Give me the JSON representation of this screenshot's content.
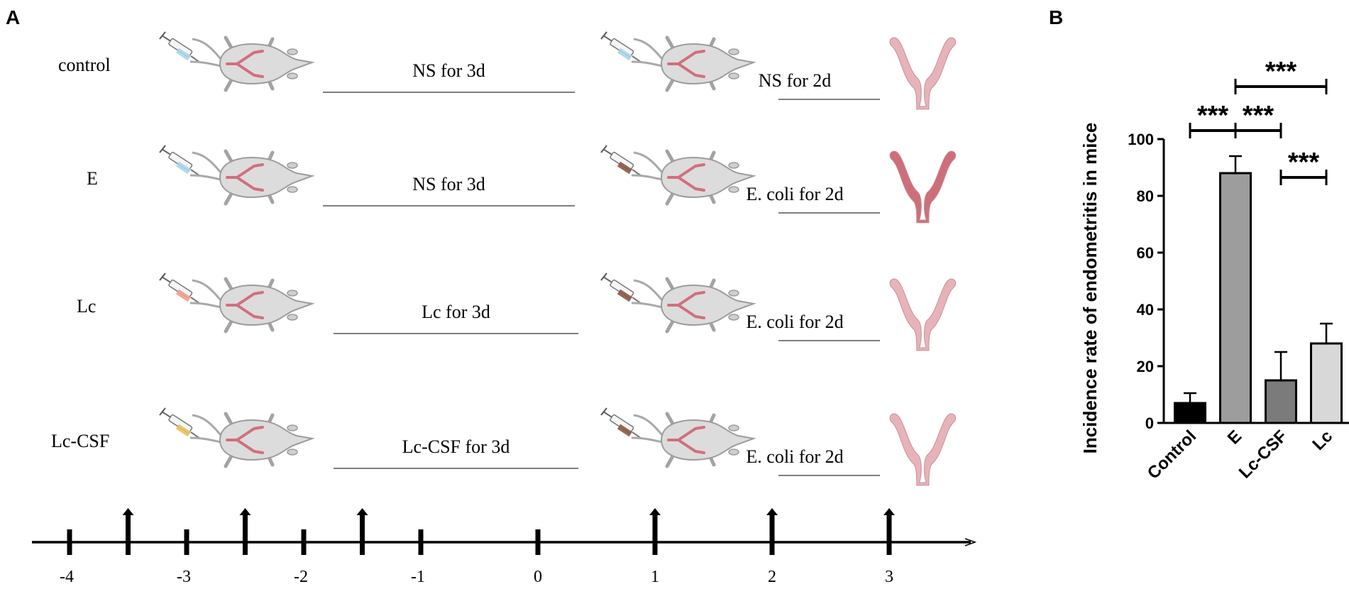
{
  "panel_a": {
    "letter": "A",
    "rows": [
      {
        "group": "control",
        "pre_label": "NS for 3d",
        "post_label": "NS for 2d",
        "syringe_color": "#a9d6ea",
        "uterus_color": "#e7b3ba"
      },
      {
        "group": "E",
        "pre_label": "NS for 3d",
        "post_label": "E. coli for 2d",
        "syringe_color": "#a9d6ea",
        "uterus_color": "#cd6f7b"
      },
      {
        "group": "Lc",
        "pre_label": "Lc for 3d",
        "post_label": "E. coli for 2d",
        "syringe_color": "#f0a08e",
        "uterus_color": "#e7b3ba"
      },
      {
        "group": "Lc-CSF",
        "pre_label": "Lc-CSF for 3d",
        "post_label": "E. coli for 2d",
        "syringe_color": "#e6c25a",
        "uterus_color": "#e7b3ba"
      }
    ],
    "post_syringe_colors": [
      "#a9d6ea",
      "#8a5a44",
      "#8a5a44",
      "#8a5a44"
    ],
    "timeline": {
      "ticks": [
        "-4",
        "-3",
        "-2",
        "-1",
        "0",
        "1",
        "2",
        "3"
      ],
      "arrow_positions": [
        -3.5,
        -2.5,
        -1.5,
        1,
        2,
        3
      ]
    }
  },
  "panel_b": {
    "letter": "B",
    "significance_label": "***",
    "chart_data": {
      "type": "bar",
      "title": "",
      "xlabel": "",
      "ylabel": "Incidence rate of endometritis in mice",
      "ylim": [
        0,
        100
      ],
      "yticks": [
        "0",
        "20",
        "40",
        "60",
        "80",
        "100"
      ],
      "categories": [
        "Control",
        "E",
        "Lc-CSF",
        "Lc"
      ],
      "values": [
        7,
        88,
        15,
        28
      ],
      "errors": [
        3.5,
        6,
        10,
        7
      ],
      "bar_colors": [
        "#000000",
        "#9d9d9d",
        "#7b7b7b",
        "#d8d8d8"
      ],
      "comparisons": [
        {
          "from": "Control",
          "to": "E",
          "label": "***"
        },
        {
          "from": "E",
          "to": "Lc-CSF",
          "label": "***"
        },
        {
          "from": "E",
          "to": "Lc",
          "label": "***"
        },
        {
          "from": "Lc-CSF",
          "to": "Lc",
          "label": "***"
        }
      ]
    }
  }
}
